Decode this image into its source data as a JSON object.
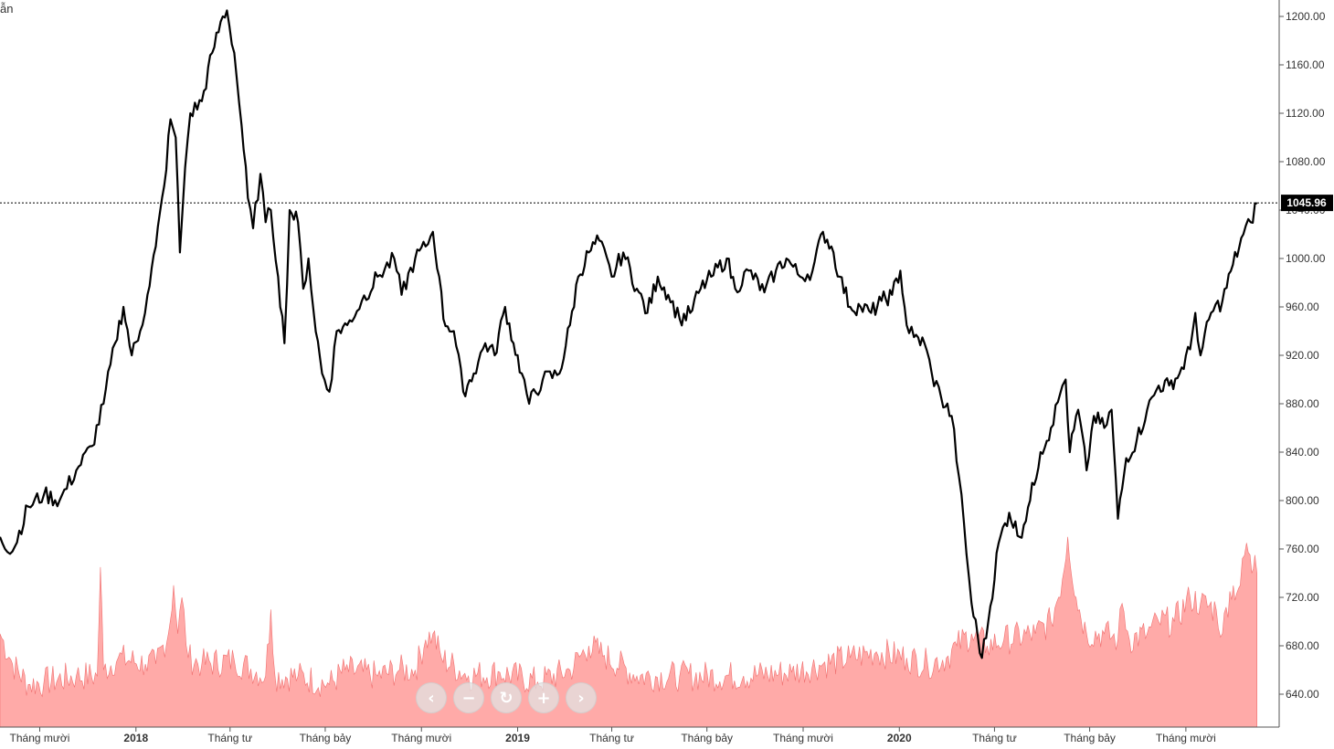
{
  "corner_label": "ẫn",
  "nav": {
    "prev": "‹",
    "zoom_out": "−",
    "reset": "↻",
    "zoom_in": "+",
    "next": "›"
  },
  "colors": {
    "price_line": "#000000",
    "volume_fill": "#ffaaa8",
    "volume_stroke": "#f07070",
    "last_price_bg": "#000000",
    "last_price_text": "#ffffff",
    "axis": "#555555"
  },
  "chart_data": {
    "type": "line",
    "title": "",
    "xlabel": "",
    "ylabel": "",
    "ylim": [
      615,
      1215
    ],
    "y_ticks": [
      "1200.00",
      "1160.00",
      "1120.00",
      "1080.00",
      "1040.00",
      "1000.00",
      "960.00",
      "920.00",
      "880.00",
      "840.00",
      "800.00",
      "760.00",
      "720.00",
      "680.00",
      "640.00"
    ],
    "x_ticks": [
      {
        "label": "Tháng mười",
        "date": "2017-10-01",
        "bold": false
      },
      {
        "label": "2018",
        "date": "2018-01-01",
        "bold": true
      },
      {
        "label": "Tháng tư",
        "date": "2018-04-01",
        "bold": false
      },
      {
        "label": "Tháng bảy",
        "date": "2018-07-01",
        "bold": false
      },
      {
        "label": "Tháng mười",
        "date": "2018-10-01",
        "bold": false
      },
      {
        "label": "2019",
        "date": "2019-01-01",
        "bold": true
      },
      {
        "label": "Tháng tư",
        "date": "2019-04-01",
        "bold": false
      },
      {
        "label": "Tháng bảy",
        "date": "2019-07-01",
        "bold": false
      },
      {
        "label": "Tháng mười",
        "date": "2019-10-01",
        "bold": false
      },
      {
        "label": "2020",
        "date": "2020-01-01",
        "bold": true
      },
      {
        "label": "Tháng tư",
        "date": "2020-04-01",
        "bold": false
      },
      {
        "label": "Tháng bảy",
        "date": "2020-07-01",
        "bold": false
      },
      {
        "label": "Tháng mười",
        "date": "2020-10-01",
        "bold": false
      }
    ],
    "x_range": [
      "2017-08-24",
      "2020-12-10"
    ],
    "last_price": "1045.96",
    "last_value": 1045.96,
    "grid": false,
    "series": [
      {
        "type": "line",
        "points": [
          [
            "2017-08-24",
            770
          ],
          [
            "2017-09-05",
            758
          ],
          [
            "2017-09-20",
            795
          ],
          [
            "2017-10-05",
            805
          ],
          [
            "2017-10-20",
            800
          ],
          [
            "2017-11-05",
            825
          ],
          [
            "2017-11-20",
            845
          ],
          [
            "2017-12-01",
            880
          ],
          [
            "2017-12-12",
            930
          ],
          [
            "2017-12-20",
            960
          ],
          [
            "2017-12-28",
            920
          ],
          [
            "2018-01-05",
            940
          ],
          [
            "2018-01-12",
            970
          ],
          [
            "2018-01-20",
            1010
          ],
          [
            "2018-01-28",
            1060
          ],
          [
            "2018-02-03",
            1115
          ],
          [
            "2018-02-08",
            1100
          ],
          [
            "2018-02-12",
            1005
          ],
          [
            "2018-02-17",
            1075
          ],
          [
            "2018-02-22",
            1120
          ],
          [
            "2018-03-05",
            1130
          ],
          [
            "2018-03-15",
            1170
          ],
          [
            "2018-03-25",
            1200
          ],
          [
            "2018-03-29",
            1205
          ],
          [
            "2018-04-05",
            1170
          ],
          [
            "2018-04-12",
            1110
          ],
          [
            "2018-04-18",
            1050
          ],
          [
            "2018-04-23",
            1025
          ],
          [
            "2018-04-30",
            1070
          ],
          [
            "2018-05-05",
            1030
          ],
          [
            "2018-05-10",
            1040
          ],
          [
            "2018-05-17",
            985
          ],
          [
            "2018-05-23",
            930
          ],
          [
            "2018-05-28",
            1040
          ],
          [
            "2018-06-05",
            1030
          ],
          [
            "2018-06-10",
            975
          ],
          [
            "2018-06-15",
            1000
          ],
          [
            "2018-06-20",
            955
          ],
          [
            "2018-06-28",
            905
          ],
          [
            "2018-07-05",
            890
          ],
          [
            "2018-07-12",
            940
          ],
          [
            "2018-07-22",
            945
          ],
          [
            "2018-08-05",
            965
          ],
          [
            "2018-08-20",
            985
          ],
          [
            "2018-09-05",
            1000
          ],
          [
            "2018-09-12",
            970
          ],
          [
            "2018-09-25",
            1000
          ],
          [
            "2018-10-05",
            1010
          ],
          [
            "2018-10-12",
            1022
          ],
          [
            "2018-10-18",
            985
          ],
          [
            "2018-10-22",
            950
          ],
          [
            "2018-11-01",
            940
          ],
          [
            "2018-11-10",
            890
          ],
          [
            "2018-11-20",
            905
          ],
          [
            "2018-12-01",
            930
          ],
          [
            "2018-12-10",
            920
          ],
          [
            "2018-12-20",
            960
          ],
          [
            "2018-12-28",
            930
          ],
          [
            "2019-01-05",
            905
          ],
          [
            "2019-01-12",
            880
          ],
          [
            "2019-01-25",
            900
          ],
          [
            "2019-02-10",
            905
          ],
          [
            "2019-02-20",
            945
          ],
          [
            "2019-02-28",
            985
          ],
          [
            "2019-03-10",
            1005
          ],
          [
            "2019-03-20",
            1015
          ],
          [
            "2019-04-01",
            985
          ],
          [
            "2019-04-12",
            1005
          ],
          [
            "2019-04-25",
            975
          ],
          [
            "2019-05-05",
            955
          ],
          [
            "2019-05-15",
            985
          ],
          [
            "2019-05-25",
            970
          ],
          [
            "2019-06-05",
            950
          ],
          [
            "2019-06-15",
            955
          ],
          [
            "2019-06-25",
            975
          ],
          [
            "2019-07-05",
            985
          ],
          [
            "2019-07-20",
            1000
          ],
          [
            "2019-07-28",
            975
          ],
          [
            "2019-08-10",
            990
          ],
          [
            "2019-08-25",
            972
          ],
          [
            "2019-09-05",
            990
          ],
          [
            "2019-09-15",
            1000
          ],
          [
            "2019-09-28",
            985
          ],
          [
            "2019-10-10",
            990
          ],
          [
            "2019-10-20",
            1022
          ],
          [
            "2019-10-28",
            1010
          ],
          [
            "2019-11-05",
            985
          ],
          [
            "2019-11-15",
            960
          ],
          [
            "2019-11-25",
            960
          ],
          [
            "2019-12-05",
            955
          ],
          [
            "2019-12-15",
            965
          ],
          [
            "2019-12-25",
            970
          ],
          [
            "2020-01-02",
            990
          ],
          [
            "2020-01-08",
            945
          ],
          [
            "2020-01-15",
            935
          ],
          [
            "2020-01-25",
            930
          ],
          [
            "2020-02-01",
            905
          ],
          [
            "2020-02-10",
            885
          ],
          [
            "2020-02-20",
            870
          ],
          [
            "2020-02-27",
            820
          ],
          [
            "2020-03-10",
            715
          ],
          [
            "2020-03-20",
            670
          ],
          [
            "2020-03-26",
            700
          ],
          [
            "2020-04-05",
            765
          ],
          [
            "2020-04-15",
            790
          ],
          [
            "2020-04-25",
            770
          ],
          [
            "2020-05-05",
            800
          ],
          [
            "2020-05-15",
            840
          ],
          [
            "2020-05-25",
            860
          ],
          [
            "2020-06-05",
            895
          ],
          [
            "2020-06-08",
            900
          ],
          [
            "2020-06-12",
            840
          ],
          [
            "2020-06-20",
            875
          ],
          [
            "2020-06-28",
            825
          ],
          [
            "2020-07-05",
            870
          ],
          [
            "2020-07-15",
            860
          ],
          [
            "2020-07-22",
            875
          ],
          [
            "2020-07-28",
            785
          ],
          [
            "2020-08-05",
            835
          ],
          [
            "2020-08-15",
            850
          ],
          [
            "2020-08-25",
            875
          ],
          [
            "2020-09-05",
            895
          ],
          [
            "2020-09-15",
            895
          ],
          [
            "2020-09-25",
            905
          ],
          [
            "2020-10-05",
            925
          ],
          [
            "2020-10-10",
            955
          ],
          [
            "2020-10-15",
            920
          ],
          [
            "2020-10-25",
            955
          ],
          [
            "2020-11-05",
            965
          ],
          [
            "2020-11-15",
            995
          ],
          [
            "2020-11-25",
            1020
          ],
          [
            "2020-12-02",
            1030
          ],
          [
            "2020-12-08",
            1045.96
          ]
        ]
      },
      {
        "type": "area",
        "role": "volume",
        "points": [
          [
            "2017-08-24",
            690
          ],
          [
            "2017-09-05",
            665
          ],
          [
            "2017-09-20",
            648
          ],
          [
            "2017-10-05",
            650
          ],
          [
            "2017-11-05",
            655
          ],
          [
            "2017-11-25",
            655
          ],
          [
            "2017-11-28",
            745
          ],
          [
            "2017-12-01",
            660
          ],
          [
            "2017-12-15",
            670
          ],
          [
            "2018-01-10",
            665
          ],
          [
            "2018-01-20",
            665
          ],
          [
            "2018-02-01",
            690
          ],
          [
            "2018-02-06",
            730
          ],
          [
            "2018-02-10",
            690
          ],
          [
            "2018-02-14",
            720
          ],
          [
            "2018-02-20",
            670
          ],
          [
            "2018-03-05",
            665
          ],
          [
            "2018-04-05",
            668
          ],
          [
            "2018-05-05",
            655
          ],
          [
            "2018-05-10",
            710
          ],
          [
            "2018-05-14",
            655
          ],
          [
            "2018-06-05",
            655
          ],
          [
            "2018-07-05",
            648
          ],
          [
            "2018-07-20",
            660
          ],
          [
            "2018-08-20",
            655
          ],
          [
            "2018-09-10",
            660
          ],
          [
            "2018-09-25",
            660
          ],
          [
            "2018-10-05",
            685
          ],
          [
            "2018-10-12",
            690
          ],
          [
            "2018-10-20",
            670
          ],
          [
            "2018-11-15",
            655
          ],
          [
            "2018-12-15",
            658
          ],
          [
            "2019-01-20",
            650
          ],
          [
            "2019-02-20",
            660
          ],
          [
            "2019-03-10",
            680
          ],
          [
            "2019-03-25",
            672
          ],
          [
            "2019-04-25",
            655
          ],
          [
            "2019-06-05",
            655
          ],
          [
            "2019-08-05",
            655
          ],
          [
            "2019-09-20",
            658
          ],
          [
            "2019-10-20",
            665
          ],
          [
            "2019-11-15",
            670
          ],
          [
            "2019-12-10",
            675
          ],
          [
            "2020-01-08",
            670
          ],
          [
            "2020-01-28",
            665
          ],
          [
            "2020-02-15",
            670
          ],
          [
            "2020-02-25",
            680
          ],
          [
            "2020-03-10",
            690
          ],
          [
            "2020-03-25",
            680
          ],
          [
            "2020-04-10",
            685
          ],
          [
            "2020-05-10",
            690
          ],
          [
            "2020-05-25",
            700
          ],
          [
            "2020-06-05",
            735
          ],
          [
            "2020-06-10",
            770
          ],
          [
            "2020-06-18",
            720
          ],
          [
            "2020-06-28",
            690
          ],
          [
            "2020-07-15",
            690
          ],
          [
            "2020-07-28",
            685
          ],
          [
            "2020-08-01",
            715
          ],
          [
            "2020-08-08",
            685
          ],
          [
            "2020-08-25",
            690
          ],
          [
            "2020-09-05",
            700
          ],
          [
            "2020-09-20",
            700
          ],
          [
            "2020-10-05",
            720
          ],
          [
            "2020-10-15",
            715
          ],
          [
            "2020-10-30",
            710
          ],
          [
            "2020-11-05",
            690
          ],
          [
            "2020-11-12",
            725
          ],
          [
            "2020-11-22",
            730
          ],
          [
            "2020-11-28",
            765
          ],
          [
            "2020-12-03",
            740
          ],
          [
            "2020-12-06",
            755
          ],
          [
            "2020-12-08",
            740
          ]
        ]
      }
    ]
  }
}
